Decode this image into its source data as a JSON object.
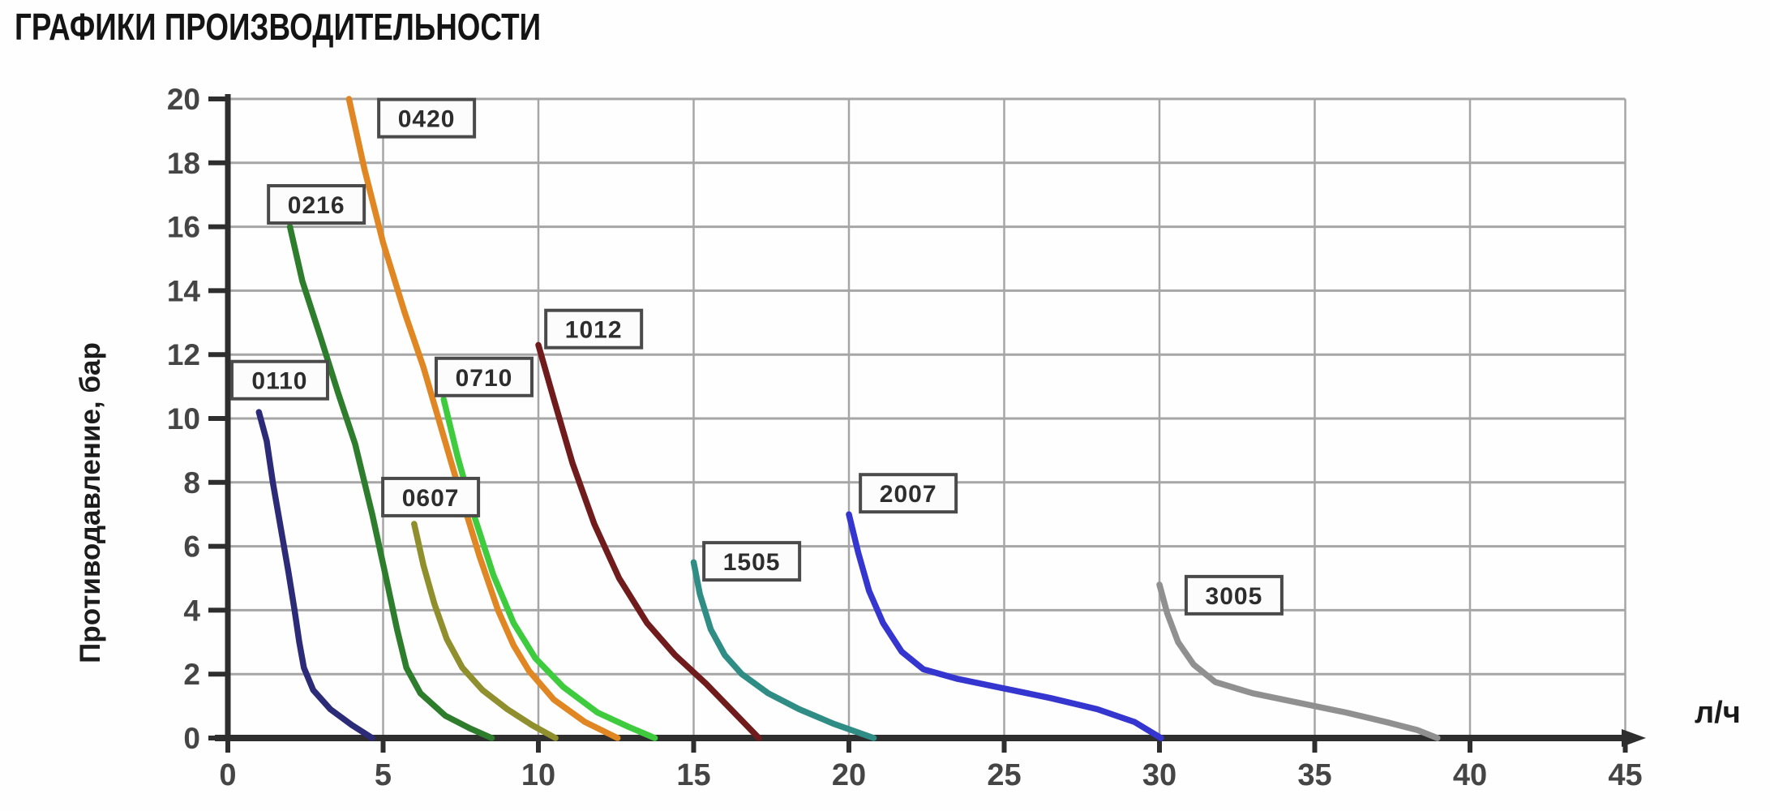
{
  "chart_data": {
    "type": "line",
    "title": "ГРАФИКИ ПРОИЗВОДИТЕЛЬНОСТИ",
    "xlabel": "л/ч",
    "ylabel": "Противодавление, бар",
    "xlim": [
      0,
      45
    ],
    "ylim": [
      0,
      20
    ],
    "x_ticks": [
      0,
      5,
      10,
      15,
      20,
      25,
      30,
      35,
      40,
      45
    ],
    "y_ticks": [
      0,
      2,
      4,
      6,
      8,
      10,
      12,
      14,
      16,
      18,
      20
    ],
    "grid": true,
    "legend_position": "labels-on-curves",
    "colors": {
      "grid": "#a6a6a6",
      "axis": "#2e2e2e",
      "tick_text": "#454545",
      "label_box_bg": "#fcfcfc",
      "label_box_border": "#4a4a4a",
      "label_text": "#2d2d2d"
    },
    "series": [
      {
        "name": "0110",
        "color": "#2b2b78",
        "label_pos": {
          "x": 1.67,
          "y": 11.2
        },
        "points": [
          [
            1,
            10.2
          ],
          [
            1.25,
            9.3
          ],
          [
            1.45,
            8.0
          ],
          [
            1.7,
            6.6
          ],
          [
            1.95,
            5.2
          ],
          [
            2.15,
            4.0
          ],
          [
            2.3,
            3.0
          ],
          [
            2.45,
            2.2
          ],
          [
            2.75,
            1.5
          ],
          [
            3.3,
            0.9
          ],
          [
            4.0,
            0.4
          ],
          [
            4.65,
            0
          ]
        ]
      },
      {
        "name": "0216",
        "color": "#2d7d2d",
        "label_pos": {
          "x": 2.85,
          "y": 16.7
        },
        "points": [
          [
            2,
            16
          ],
          [
            2.4,
            14.3
          ],
          [
            3.0,
            12.5
          ],
          [
            3.55,
            10.8
          ],
          [
            4.1,
            9.2
          ],
          [
            4.65,
            7.0
          ],
          [
            5.1,
            5.0
          ],
          [
            5.45,
            3.4
          ],
          [
            5.75,
            2.2
          ],
          [
            6.2,
            1.4
          ],
          [
            7.0,
            0.7
          ],
          [
            7.8,
            0.3
          ],
          [
            8.5,
            0
          ]
        ]
      },
      {
        "name": "0420",
        "color": "#e08622",
        "label_pos": {
          "x": 6.4,
          "y": 19.4
        },
        "points": [
          [
            3.9,
            20
          ],
          [
            4.4,
            17.8
          ],
          [
            5.0,
            15.5
          ],
          [
            5.7,
            13.3
          ],
          [
            6.3,
            11.6
          ],
          [
            6.9,
            9.6
          ],
          [
            7.5,
            7.6
          ],
          [
            8.1,
            5.7
          ],
          [
            8.7,
            4.0
          ],
          [
            9.2,
            2.9
          ],
          [
            9.7,
            2.1
          ],
          [
            10.5,
            1.2
          ],
          [
            11.5,
            0.5
          ],
          [
            12.55,
            0
          ]
        ]
      },
      {
        "name": "0607",
        "color": "#8f8f2e",
        "label_pos": {
          "x": 6.53,
          "y": 7.54
        },
        "points": [
          [
            6,
            6.7
          ],
          [
            6.3,
            5.4
          ],
          [
            6.65,
            4.2
          ],
          [
            7.05,
            3.1
          ],
          [
            7.55,
            2.2
          ],
          [
            8.2,
            1.5
          ],
          [
            9.0,
            0.9
          ],
          [
            9.8,
            0.4
          ],
          [
            10.55,
            0
          ]
        ]
      },
      {
        "name": "0710",
        "color": "#3ecc3e",
        "label_pos": {
          "x": 8.25,
          "y": 11.3
        },
        "points": [
          [
            6.95,
            10.6
          ],
          [
            7.4,
            8.8
          ],
          [
            7.95,
            6.9
          ],
          [
            8.55,
            5.1
          ],
          [
            9.2,
            3.6
          ],
          [
            9.9,
            2.5
          ],
          [
            10.8,
            1.6
          ],
          [
            11.9,
            0.8
          ],
          [
            12.9,
            0.35
          ],
          [
            13.75,
            0
          ]
        ]
      },
      {
        "name": "1012",
        "color": "#701c1c",
        "label_pos": {
          "x": 11.78,
          "y": 12.8
        },
        "points": [
          [
            10,
            12.3
          ],
          [
            10.5,
            10.6
          ],
          [
            11.1,
            8.6
          ],
          [
            11.8,
            6.7
          ],
          [
            12.6,
            5.0
          ],
          [
            13.5,
            3.6
          ],
          [
            14.4,
            2.6
          ],
          [
            15.4,
            1.7
          ],
          [
            16.3,
            0.8
          ],
          [
            17.1,
            0
          ]
        ]
      },
      {
        "name": "1505",
        "color": "#2f8d86",
        "label_pos": {
          "x": 16.87,
          "y": 5.53
        },
        "points": [
          [
            15,
            5.5
          ],
          [
            15.2,
            4.5
          ],
          [
            15.55,
            3.4
          ],
          [
            16.0,
            2.6
          ],
          [
            16.55,
            2.0
          ],
          [
            17.4,
            1.4
          ],
          [
            18.4,
            0.9
          ],
          [
            19.5,
            0.45
          ],
          [
            20.8,
            0
          ]
        ]
      },
      {
        "name": "2007",
        "color": "#3535cf",
        "label_pos": {
          "x": 21.91,
          "y": 7.66
        },
        "points": [
          [
            20,
            7.0
          ],
          [
            20.3,
            5.8
          ],
          [
            20.65,
            4.6
          ],
          [
            21.1,
            3.6
          ],
          [
            21.7,
            2.7
          ],
          [
            22.4,
            2.15
          ],
          [
            23.5,
            1.85
          ],
          [
            25.0,
            1.55
          ],
          [
            26.5,
            1.25
          ],
          [
            28.0,
            0.9
          ],
          [
            29.2,
            0.5
          ],
          [
            30.05,
            0
          ]
        ]
      },
      {
        "name": "3005",
        "color": "#909090",
        "label_pos": {
          "x": 32.4,
          "y": 4.47
        },
        "points": [
          [
            30,
            4.8
          ],
          [
            30.25,
            3.9
          ],
          [
            30.6,
            3.0
          ],
          [
            31.1,
            2.3
          ],
          [
            31.8,
            1.75
          ],
          [
            33.0,
            1.4
          ],
          [
            34.5,
            1.1
          ],
          [
            36.0,
            0.8
          ],
          [
            37.3,
            0.5
          ],
          [
            38.3,
            0.25
          ],
          [
            38.95,
            0
          ]
        ]
      }
    ]
  }
}
